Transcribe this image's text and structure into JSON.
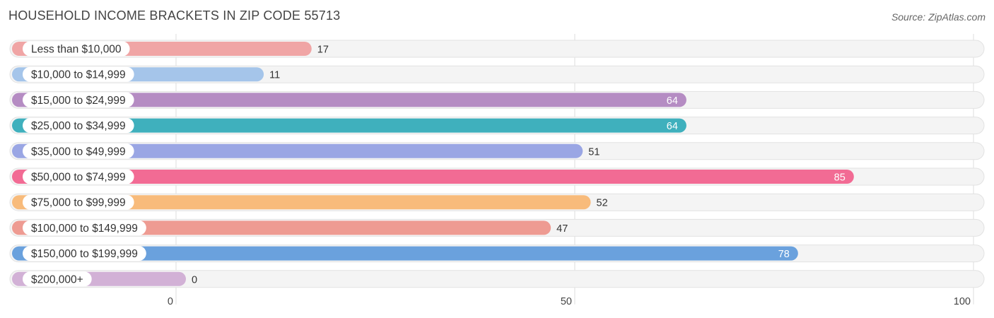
{
  "header": {
    "title": "HOUSEHOLD INCOME BRACKETS IN ZIP CODE 55713",
    "source": "Source: ZipAtlas.com"
  },
  "chart_data": {
    "type": "bar",
    "orientation": "horizontal",
    "categories": [
      "Less than $10,000",
      "$10,000 to $14,999",
      "$15,000 to $24,999",
      "$25,000 to $34,999",
      "$35,000 to $49,999",
      "$50,000 to $74,999",
      "$75,000 to $99,999",
      "$100,000 to $149,999",
      "$150,000 to $199,999",
      "$200,000+"
    ],
    "values": [
      17,
      11,
      64,
      64,
      51,
      85,
      52,
      47,
      78,
      0
    ],
    "colors": [
      "#f0a5a5",
      "#a5c5ea",
      "#b58cc3",
      "#3fb0bd",
      "#9aa6e4",
      "#f26b94",
      "#f8bb7b",
      "#ee9b92",
      "#6aa1dd",
      "#d2b1d6"
    ],
    "value_label_inside": [
      false,
      false,
      true,
      true,
      false,
      true,
      false,
      false,
      true,
      false
    ],
    "xlim": [
      0,
      100
    ],
    "xticks": [
      0,
      50,
      100
    ],
    "xtick_labels": [
      "0",
      "50",
      "100"
    ],
    "grid": true,
    "legend": "none"
  }
}
